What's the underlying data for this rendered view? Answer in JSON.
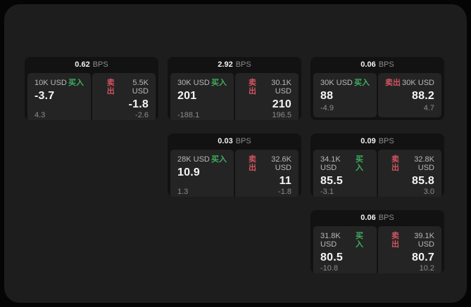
{
  "labels": {
    "bps": "BPS",
    "buy": "买入",
    "sell": "卖出"
  },
  "colors": {
    "background": "#050505",
    "panel": "#1d1d1d",
    "card": "#121212",
    "tile": "#242424",
    "buy_accent": "#3fae5e",
    "sell_accent": "#d15460"
  },
  "cards": [
    {
      "bps": "0.62",
      "buy": {
        "amount": "10K USD",
        "price": "-3.7",
        "delta": "4.3"
      },
      "sell": {
        "amount": "5.5K USD",
        "price": "-1.8",
        "delta": "-2.6"
      }
    },
    {
      "bps": "2.92",
      "buy": {
        "amount": "30K USD",
        "price": "201",
        "delta": "-188.1"
      },
      "sell": {
        "amount": "30.1K USD",
        "price": "210",
        "delta": "196.5"
      }
    },
    {
      "bps": "0.06",
      "buy": {
        "amount": "30K USD",
        "price": "88",
        "delta": "-4.9"
      },
      "sell": {
        "amount": "30K USD",
        "price": "88.2",
        "delta": "4.7"
      }
    },
    {
      "bps": "0.03",
      "buy": {
        "amount": "28K USD",
        "price": "10.9",
        "delta": "1.3"
      },
      "sell": {
        "amount": "32.6K USD",
        "price": "11",
        "delta": "-1.8"
      }
    },
    {
      "bps": "0.09",
      "buy": {
        "amount": "34.1K USD",
        "price": "85.5",
        "delta": "-3.1"
      },
      "sell": {
        "amount": "32.8K USD",
        "price": "85.8",
        "delta": "3.0"
      }
    },
    {
      "bps": "0.06",
      "buy": {
        "amount": "31.8K USD",
        "price": "80.5",
        "delta": "-10.8"
      },
      "sell": {
        "amount": "39.1K USD",
        "price": "80.7",
        "delta": "10.2"
      }
    }
  ]
}
